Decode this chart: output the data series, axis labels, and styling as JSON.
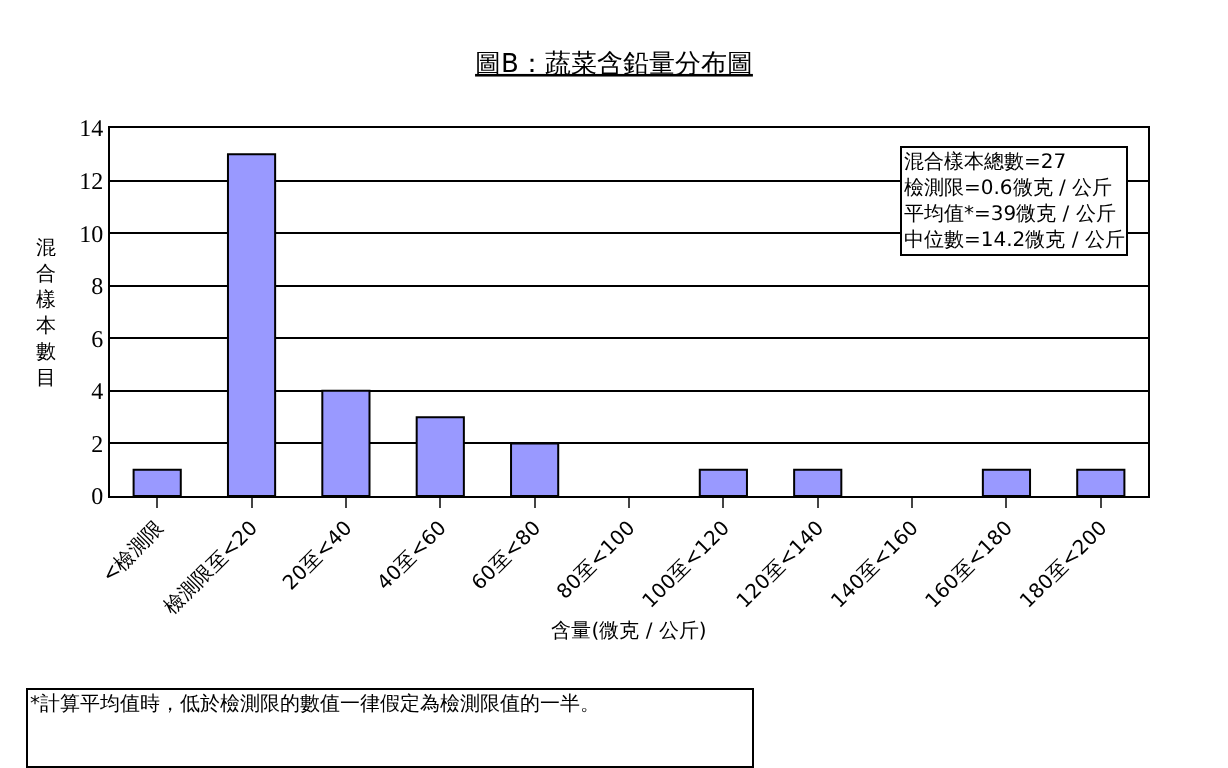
{
  "chart_data": {
    "type": "bar",
    "title": "圖B：蔬菜含鉛量分布圖",
    "categories": [
      "<檢測限",
      "檢測限至<20",
      "20至<40",
      "40至<60",
      "60至<80",
      "80至<100",
      "100至<120",
      "120至<140",
      "140至<160",
      "160至<180",
      "180至<200"
    ],
    "values": [
      1,
      13,
      4,
      3,
      2,
      0,
      1,
      1,
      0,
      1,
      1
    ],
    "color": "#9999ff",
    "xlabel": "含量(微克 / 公斤)",
    "ylabel": "混合樣本數目",
    "ylim": [
      0,
      14
    ],
    "yticks": [
      0,
      2,
      4,
      6,
      8,
      10,
      12,
      14
    ],
    "grid": "y",
    "legend": false,
    "annotations": [
      "混合樣本總數=27",
      "檢測限=0.6微克 / 公斤",
      "平均值*=39微克 / 公斤",
      "中位數=14.2微克 / 公斤",
      "*計算平均值時，低於檢測限的數值一律假定為檢測限值的一半。"
    ]
  }
}
